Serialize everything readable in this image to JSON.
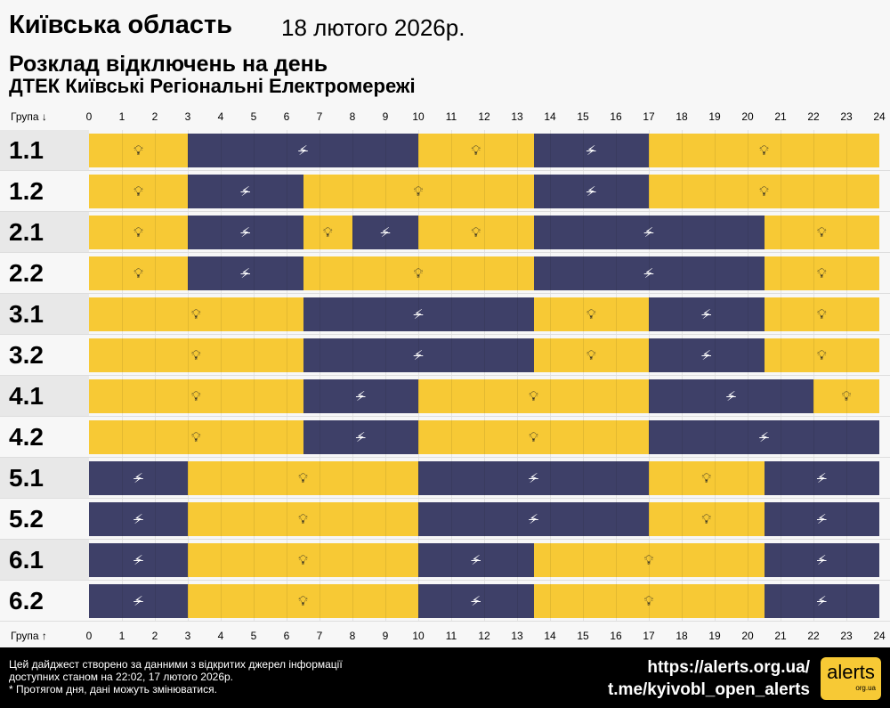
{
  "header": {
    "region": "Київська область",
    "date": "18 лютого 2026р.",
    "title": "Розклад відключень на день",
    "provider": "ДТЕК Київські Регіональні Електромережі"
  },
  "axis": {
    "top_label": "Група ↓",
    "bottom_label": "Група ↑",
    "ticks": [
      "0",
      "1",
      "2",
      "3",
      "4",
      "5",
      "6",
      "7",
      "8",
      "9",
      "10",
      "11",
      "12",
      "13",
      "14",
      "15",
      "16",
      "17",
      "18",
      "19",
      "20",
      "21",
      "22",
      "23",
      "24"
    ]
  },
  "colors": {
    "power_on": "#f7c935",
    "power_off": "#3e4068"
  },
  "icons": {
    "on": "lightbulb-icon",
    "off": "power-off-icon"
  },
  "groups": [
    {
      "name": "1.1",
      "off": [
        [
          3,
          10
        ],
        [
          13.5,
          17
        ]
      ]
    },
    {
      "name": "1.2",
      "off": [
        [
          3,
          6.5
        ],
        [
          13.5,
          17
        ]
      ]
    },
    {
      "name": "2.1",
      "off": [
        [
          3,
          6.5
        ],
        [
          8,
          10
        ],
        [
          13.5,
          20.5
        ]
      ]
    },
    {
      "name": "2.2",
      "off": [
        [
          3,
          6.5
        ],
        [
          13.5,
          20.5
        ]
      ]
    },
    {
      "name": "3.1",
      "off": [
        [
          6.5,
          13.5
        ],
        [
          17,
          20.5
        ]
      ]
    },
    {
      "name": "3.2",
      "off": [
        [
          6.5,
          13.5
        ],
        [
          17,
          20.5
        ]
      ]
    },
    {
      "name": "4.1",
      "off": [
        [
          6.5,
          10
        ],
        [
          17,
          22
        ]
      ]
    },
    {
      "name": "4.2",
      "off": [
        [
          6.5,
          10
        ],
        [
          17,
          24
        ]
      ]
    },
    {
      "name": "5.1",
      "off": [
        [
          0,
          3
        ],
        [
          10,
          17
        ],
        [
          20.5,
          24
        ]
      ]
    },
    {
      "name": "5.2",
      "off": [
        [
          0,
          3
        ],
        [
          10,
          17
        ],
        [
          20.5,
          24
        ]
      ]
    },
    {
      "name": "6.1",
      "off": [
        [
          0,
          3
        ],
        [
          10,
          13.5
        ],
        [
          20.5,
          24
        ]
      ]
    },
    {
      "name": "6.2",
      "off": [
        [
          0,
          3
        ],
        [
          10,
          13.5
        ],
        [
          20.5,
          24
        ]
      ]
    }
  ],
  "footer": {
    "line1": "Цей дайджест створено за данними з відкритих джерел інформації",
    "line2": "доступних станом на 22:02, 17 лютого 2026р.",
    "line3": "* Протягом дня, дані можуть змінюватися.",
    "url": "https://alerts.org.ua/",
    "telegram": "t.me/kyivobl_open_alerts",
    "logo": "alerts",
    "logo_sub": "org.ua"
  }
}
